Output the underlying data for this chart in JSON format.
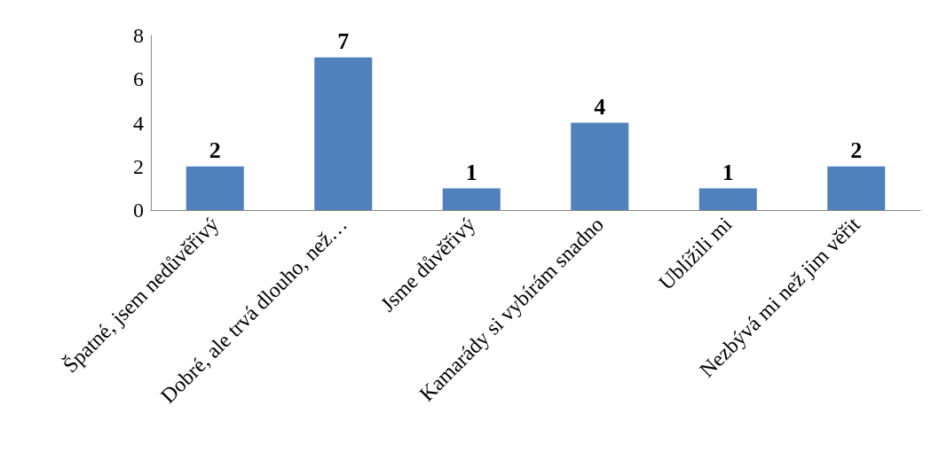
{
  "chart_data": {
    "type": "bar",
    "categories": [
      "Špatné, jsem nedůvěřivý",
      "Dobré, ale trvá dlouho, než…",
      "Jsme důvěřivý",
      "Kamarády si vybírám snadno",
      "Ublížili mi",
      "Nezbývá mi než jim věřit"
    ],
    "values": [
      2,
      7,
      1,
      4,
      1,
      2
    ],
    "color": "#4f81bd",
    "ylim": [
      0,
      8
    ],
    "yticks": [
      0,
      2,
      4,
      6,
      8
    ],
    "data_labels": true
  }
}
